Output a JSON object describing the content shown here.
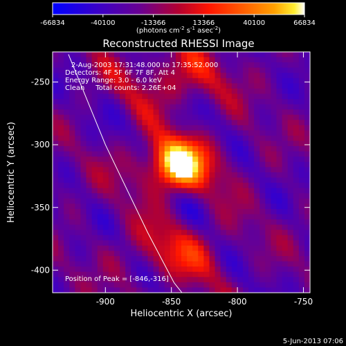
{
  "colorbar": {
    "ticks": [
      "-66834",
      "-40100",
      "-13366",
      "13366",
      "40100",
      "66834"
    ],
    "tick_values": [
      -66834,
      -40100,
      -13366,
      13366,
      40100,
      66834
    ],
    "min": -66834,
    "max": 66834,
    "units_main": "(photons cm",
    "units_sup1": "-2",
    "units_mid": " s",
    "units_sup2": "-1",
    "units_end": " asec",
    "units_sup3": "-2",
    "units_close": ")"
  },
  "plot": {
    "title": "Reconstructed RHESSI Image",
    "annotations": [
      "2-Aug-2003 17:31:48.000 to 17:35:52.000",
      "Detectors: 4F 5F 6F 7F 8F, Att 4",
      "Energy Range: 3.0 - 6.0 keV",
      "Clean     Total counts: 2.26E+04"
    ],
    "peak_label": "Position of Peak = [-846,-316]",
    "timestamp": "5-Jun-2013 07:06"
  },
  "chart_data": {
    "type": "heatmap",
    "title": "Reconstructed RHESSI Image",
    "xlabel": "Heliocentric X (arcsec)",
    "ylabel": "Heliocentric Y (arcsec)",
    "xlim": [
      -940,
      -745
    ],
    "ylim": [
      -418,
      -226
    ],
    "x_ticks": [
      -900,
      -850,
      -800,
      -750
    ],
    "y_ticks": [
      -400,
      -350,
      -300,
      -250
    ],
    "x_tick_labels": [
      "-900",
      "-850",
      "-800",
      "-750"
    ],
    "y_tick_labels": [
      "-400",
      "-350",
      "-300",
      "-250"
    ],
    "peak": {
      "x": -846,
      "y": -316
    },
    "limb_curve": [
      [
        -928,
        -228
      ],
      [
        -900,
        -300
      ],
      [
        -868,
        -370
      ],
      [
        -848,
        -410
      ],
      [
        -842,
        -418
      ]
    ],
    "colormap": "blue-purple-red-orange-yellow-white"
  }
}
